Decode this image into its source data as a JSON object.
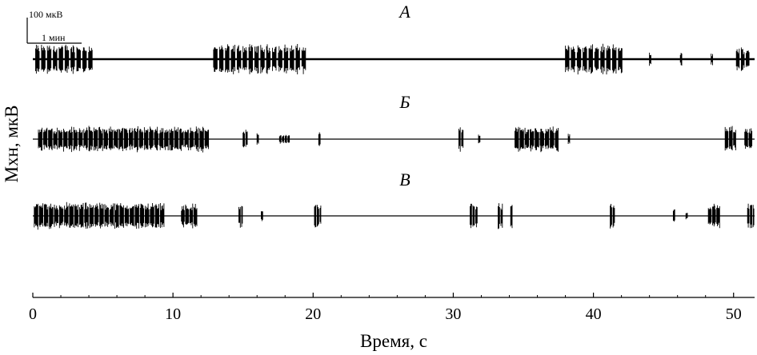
{
  "chart_data": {
    "type": "line",
    "xlabel": "Время, с",
    "ylabel": "Мхн, мкВ",
    "xlim": [
      0,
      51.5
    ],
    "xticks": [
      0,
      10,
      20,
      30,
      40,
      50
    ],
    "scale_bar": {
      "amplitude": "100 мкВ",
      "time": "1 мин"
    },
    "series": [
      {
        "label": "А",
        "baseline_amplitude_uV": 6,
        "bursts": [
          {
            "start": 0.2,
            "end": 4.6,
            "amplitude_uV": 100,
            "period_s": 0.42
          },
          {
            "start": 12.9,
            "end": 19.6,
            "amplitude_uV": 100,
            "period_s": 0.42
          },
          {
            "start": 38.0,
            "end": 42.4,
            "amplitude_uV": 100,
            "period_s": 0.42
          },
          {
            "start": 44.0,
            "end": 44.2,
            "amplitude_uV": 45,
            "period_s": 0.2
          },
          {
            "start": 46.2,
            "end": 46.4,
            "amplitude_uV": 45,
            "period_s": 0.2
          },
          {
            "start": 48.4,
            "end": 48.6,
            "amplitude_uV": 45,
            "period_s": 0.2
          },
          {
            "start": 50.2,
            "end": 51.4,
            "amplitude_uV": 80,
            "period_s": 0.35
          }
        ]
      },
      {
        "label": "Б",
        "baseline_amplitude_uV": 3,
        "bursts": [
          {
            "start": 0.4,
            "end": 12.7,
            "amplitude_uV": 100,
            "period_s": 0.36
          },
          {
            "start": 15.0,
            "end": 15.4,
            "amplitude_uV": 90,
            "period_s": 0.2
          },
          {
            "start": 16.0,
            "end": 16.2,
            "amplitude_uV": 60,
            "period_s": 0.2
          },
          {
            "start": 17.6,
            "end": 18.4,
            "amplitude_uV": 35,
            "period_s": 0.2
          },
          {
            "start": 20.4,
            "end": 20.6,
            "amplitude_uV": 60,
            "period_s": 0.2
          },
          {
            "start": 30.4,
            "end": 30.8,
            "amplitude_uV": 100,
            "period_s": 0.2
          },
          {
            "start": 31.8,
            "end": 32.0,
            "amplitude_uV": 50,
            "period_s": 0.2
          },
          {
            "start": 34.4,
            "end": 37.5,
            "amplitude_uV": 100,
            "period_s": 0.36
          },
          {
            "start": 38.2,
            "end": 38.4,
            "amplitude_uV": 45,
            "period_s": 0.2
          },
          {
            "start": 49.4,
            "end": 50.2,
            "amplitude_uV": 100,
            "period_s": 0.3
          },
          {
            "start": 50.8,
            "end": 51.4,
            "amplitude_uV": 100,
            "period_s": 0.3
          }
        ]
      },
      {
        "label": "В",
        "baseline_amplitude_uV": 3,
        "bursts": [
          {
            "start": 0.1,
            "end": 9.4,
            "amplitude_uV": 100,
            "period_s": 0.36
          },
          {
            "start": 10.6,
            "end": 11.9,
            "amplitude_uV": 90,
            "period_s": 0.3
          },
          {
            "start": 14.7,
            "end": 15.0,
            "amplitude_uV": 90,
            "period_s": 0.2
          },
          {
            "start": 16.3,
            "end": 16.5,
            "amplitude_uV": 50,
            "period_s": 0.2
          },
          {
            "start": 20.1,
            "end": 20.6,
            "amplitude_uV": 100,
            "period_s": 0.2
          },
          {
            "start": 31.2,
            "end": 31.9,
            "amplitude_uV": 100,
            "period_s": 0.2
          },
          {
            "start": 33.2,
            "end": 33.6,
            "amplitude_uV": 100,
            "period_s": 0.2
          },
          {
            "start": 34.1,
            "end": 34.4,
            "amplitude_uV": 100,
            "period_s": 0.2
          },
          {
            "start": 41.2,
            "end": 41.6,
            "amplitude_uV": 100,
            "period_s": 0.2
          },
          {
            "start": 45.7,
            "end": 45.9,
            "amplitude_uV": 50,
            "period_s": 0.2
          },
          {
            "start": 46.6,
            "end": 46.8,
            "amplitude_uV": 35,
            "period_s": 0.2
          },
          {
            "start": 48.2,
            "end": 49.2,
            "amplitude_uV": 90,
            "period_s": 0.3
          },
          {
            "start": 51.0,
            "end": 51.5,
            "amplitude_uV": 100,
            "period_s": 0.2
          }
        ]
      }
    ]
  }
}
